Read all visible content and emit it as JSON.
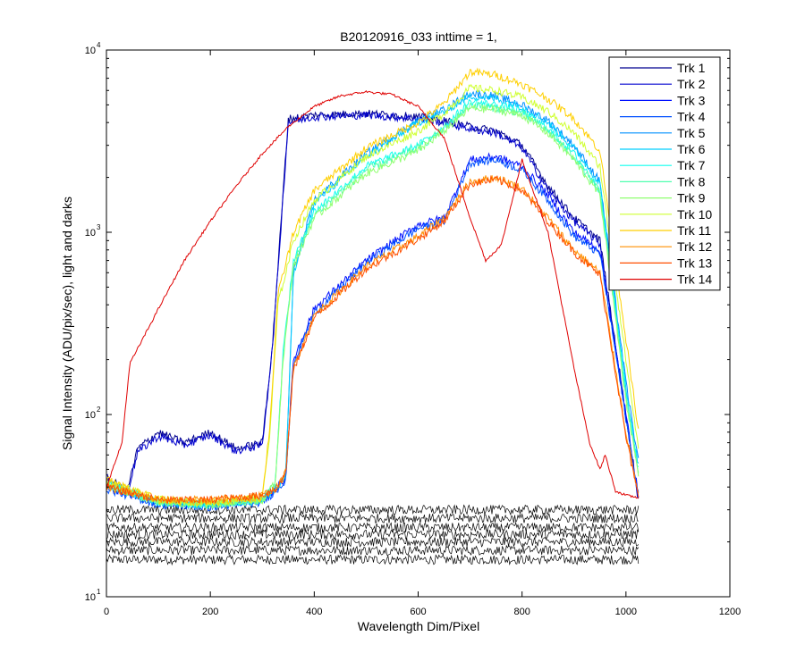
{
  "chart_data": {
    "type": "line",
    "title": "B20120916_033 inttime = 1,",
    "xlabel": "Wavelength Dim/Pixel",
    "ylabel": "Signal Intensity (ADU/pix/sec), light and darks",
    "xlim": [
      0,
      1200
    ],
    "ylim": [
      10,
      10000
    ],
    "yscale": "log",
    "x_ticks": [
      "0",
      "200",
      "400",
      "600",
      "800",
      "1000",
      "1200"
    ],
    "y_ticks": [
      {
        "base": "10",
        "exp": "1"
      },
      {
        "base": "10",
        "exp": "2"
      },
      {
        "base": "10",
        "exp": "3"
      },
      {
        "base": "10",
        "exp": "4"
      }
    ],
    "grid": false,
    "legend_position": "top-right",
    "series": [
      {
        "name": "Trk 1",
        "color": "#00008f",
        "x": [
          0,
          40,
          60,
          100,
          150,
          200,
          250,
          300,
          320,
          350,
          400,
          500,
          600,
          650,
          700,
          750,
          800,
          850,
          900,
          950,
          1000,
          1024
        ],
        "y": [
          45,
          38,
          65,
          80,
          70,
          80,
          65,
          70,
          250,
          4200,
          4400,
          4500,
          4300,
          4100,
          3800,
          3600,
          3000,
          1800,
          1200,
          900,
          100,
          35
        ]
      },
      {
        "name": "Trk 2",
        "color": "#0000cf",
        "x": [
          0,
          40,
          60,
          100,
          150,
          200,
          250,
          300,
          320,
          350,
          400,
          500,
          600,
          650,
          700,
          750,
          800,
          850,
          900,
          950,
          1000,
          1024
        ],
        "y": [
          44,
          37,
          62,
          76,
          68,
          77,
          63,
          68,
          240,
          4000,
          4300,
          4400,
          4200,
          4000,
          3700,
          3500,
          2900,
          1700,
          1150,
          860,
          95,
          34
        ]
      },
      {
        "name": "Trk 3",
        "color": "#0010ff",
        "x": [
          0,
          100,
          200,
          300,
          330,
          345,
          360,
          400,
          500,
          600,
          650,
          700,
          750,
          800,
          850,
          900,
          950,
          1000,
          1024
        ],
        "y": [
          40,
          33,
          32,
          34,
          40,
          45,
          200,
          380,
          700,
          1100,
          1200,
          2500,
          2600,
          2300,
          1600,
          1000,
          800,
          100,
          36
        ]
      },
      {
        "name": "Trk 4",
        "color": "#0050ff",
        "x": [
          0,
          100,
          200,
          300,
          330,
          345,
          360,
          400,
          500,
          600,
          650,
          700,
          750,
          800,
          850,
          900,
          950,
          1000,
          1024
        ],
        "y": [
          39,
          32,
          31,
          33,
          39,
          44,
          190,
          360,
          680,
          1050,
          1150,
          2400,
          2500,
          2200,
          1500,
          950,
          760,
          95,
          35
        ]
      },
      {
        "name": "Trk 5",
        "color": "#0090ff",
        "x": [
          0,
          100,
          200,
          300,
          330,
          345,
          360,
          400,
          500,
          600,
          650,
          700,
          750,
          800,
          850,
          900,
          950,
          1000,
          1024
        ],
        "y": [
          42,
          33,
          32,
          34,
          40,
          45,
          600,
          1500,
          2700,
          4100,
          4700,
          5800,
          5600,
          5000,
          4100,
          3000,
          1900,
          150,
          55
        ]
      },
      {
        "name": "Trk 6",
        "color": "#00cfff",
        "x": [
          0,
          100,
          200,
          300,
          330,
          345,
          360,
          400,
          500,
          600,
          650,
          700,
          750,
          800,
          850,
          900,
          950,
          1000,
          1024
        ],
        "y": [
          42,
          33,
          32,
          34,
          40,
          45,
          580,
          1450,
          2600,
          4000,
          4600,
          5600,
          5400,
          4900,
          4000,
          2900,
          1850,
          140,
          52
        ]
      },
      {
        "name": "Trk 7",
        "color": "#10ffef",
        "x": [
          0,
          100,
          200,
          300,
          325,
          340,
          360,
          400,
          500,
          600,
          650,
          700,
          750,
          800,
          850,
          900,
          950,
          1000,
          1024
        ],
        "y": [
          42,
          33,
          32,
          34,
          42,
          220,
          700,
          1300,
          2300,
          3000,
          3800,
          5200,
          5000,
          4600,
          3700,
          2700,
          1700,
          130,
          50
        ]
      },
      {
        "name": "Trk 8",
        "color": "#50ffaf",
        "x": [
          0,
          100,
          200,
          300,
          325,
          340,
          360,
          400,
          500,
          600,
          650,
          700,
          750,
          800,
          850,
          900,
          950,
          1000,
          1024
        ],
        "y": [
          41,
          33,
          32,
          34,
          42,
          210,
          680,
          1250,
          2200,
          2900,
          3700,
          5000,
          4800,
          4500,
          3600,
          2600,
          1650,
          125,
          48
        ]
      },
      {
        "name": "Trk 9",
        "color": "#90ff70",
        "x": [
          0,
          100,
          200,
          300,
          325,
          340,
          360,
          400,
          500,
          600,
          650,
          700,
          750,
          800,
          850,
          900,
          950,
          1000,
          1024
        ],
        "y": [
          41,
          33,
          32,
          34,
          42,
          200,
          650,
          1200,
          2100,
          2800,
          3600,
          4800,
          4700,
          4400,
          3500,
          2500,
          1600,
          120,
          47
        ]
      },
      {
        "name": "Trk 10",
        "color": "#cfff30",
        "x": [
          0,
          100,
          200,
          300,
          315,
          330,
          360,
          400,
          500,
          600,
          650,
          700,
          750,
          800,
          850,
          900,
          950,
          1000,
          1024
        ],
        "y": [
          43,
          34,
          33,
          35,
          80,
          400,
          900,
          1500,
          2600,
          3600,
          4500,
          6200,
          6000,
          5500,
          4600,
          3500,
          2300,
          200,
          65
        ]
      },
      {
        "name": "Trk 11",
        "color": "#ffcf00",
        "x": [
          0,
          100,
          200,
          300,
          315,
          330,
          360,
          400,
          500,
          600,
          650,
          700,
          750,
          800,
          850,
          900,
          950,
          1000,
          1024
        ],
        "y": [
          44,
          34,
          33,
          35,
          90,
          450,
          1000,
          1700,
          2900,
          4000,
          5100,
          7600,
          7300,
          6500,
          5400,
          4200,
          2800,
          260,
          80
        ]
      },
      {
        "name": "Trk 12",
        "color": "#ff8f00",
        "x": [
          0,
          100,
          200,
          300,
          330,
          345,
          360,
          400,
          500,
          600,
          650,
          700,
          750,
          800,
          850,
          900,
          950,
          1000,
          1024
        ],
        "y": [
          40,
          34,
          34,
          36,
          40,
          48,
          180,
          350,
          650,
          950,
          1200,
          1900,
          2000,
          1750,
          1200,
          800,
          600,
          80,
          36
        ]
      },
      {
        "name": "Trk 13",
        "color": "#ff4f00",
        "x": [
          0,
          100,
          200,
          300,
          330,
          345,
          360,
          400,
          500,
          600,
          650,
          700,
          750,
          800,
          850,
          900,
          950,
          1000,
          1024
        ],
        "y": [
          40,
          34,
          34,
          36,
          40,
          48,
          175,
          340,
          630,
          920,
          1150,
          1850,
          1950,
          1700,
          1150,
          780,
          580,
          75,
          35
        ]
      },
      {
        "name": "Trk 14",
        "color": "#df0000",
        "x": [
          0,
          30,
          45,
          70,
          100,
          150,
          200,
          250,
          300,
          350,
          400,
          450,
          500,
          550,
          600,
          650,
          700,
          730,
          760,
          800,
          850,
          900,
          930,
          950,
          960,
          980,
          1000,
          1024
        ],
        "y": [
          40,
          70,
          190,
          260,
          380,
          700,
          1150,
          1800,
          2700,
          3800,
          4900,
          5600,
          5900,
          5700,
          4900,
          3300,
          1200,
          700,
          850,
          2500,
          1000,
          180,
          70,
          50,
          60,
          38,
          36,
          35
        ]
      }
    ],
    "darks": {
      "color": "#000000",
      "x": [
        0,
        1024
      ],
      "levels": [
        16,
        18,
        20,
        22,
        24,
        27,
        30
      ]
    }
  }
}
